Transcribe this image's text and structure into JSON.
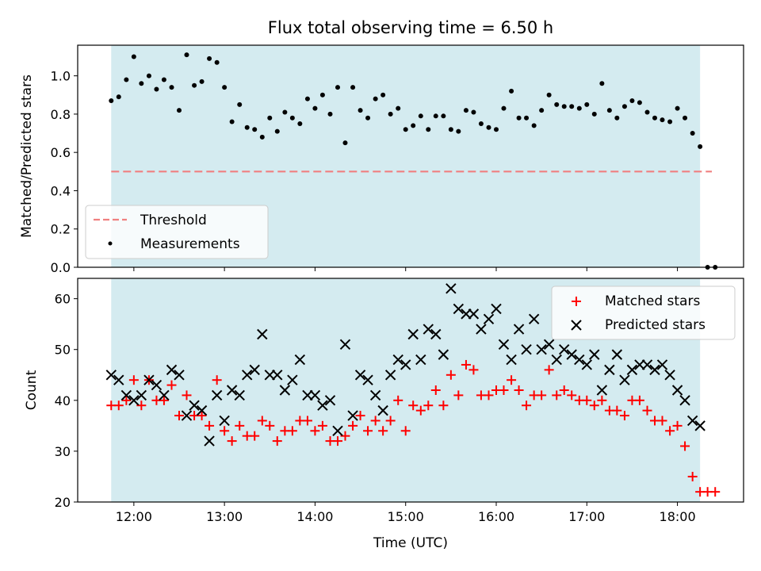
{
  "chart_data": [
    {
      "type": "scatter",
      "title": "Flux total observing time = 6.50 h",
      "ylabel": "Matched/Predicted stars",
      "xlabel": "",
      "xlim": [
        11.38,
        18.73
      ],
      "ylim": [
        0.0,
        1.16
      ],
      "yticks": [
        0.0,
        0.2,
        0.4,
        0.6,
        0.8,
        1.0
      ],
      "ytick_labels": [
        "0.0",
        "0.2",
        "0.4",
        "0.6",
        "0.8",
        "1.0"
      ],
      "xticks": [
        12,
        13,
        14,
        15,
        16,
        17,
        18
      ],
      "observing_window": [
        11.75,
        18.25
      ],
      "window_color": "#d4ebf0",
      "threshold": {
        "name": "Threshold",
        "value": 0.5,
        "x": [
          11.75,
          18.38
        ],
        "color": "#f08080",
        "style": "dashed"
      },
      "series": [
        {
          "name": "Measurements",
          "color": "#000000",
          "marker": "dot",
          "x": [
            11.75,
            11.833,
            11.917,
            12.0,
            12.083,
            12.167,
            12.25,
            12.333,
            12.417,
            12.5,
            12.583,
            12.667,
            12.75,
            12.833,
            12.917,
            13.0,
            13.083,
            13.167,
            13.25,
            13.333,
            13.417,
            13.5,
            13.583,
            13.667,
            13.75,
            13.833,
            13.917,
            14.0,
            14.083,
            14.167,
            14.25,
            14.333,
            14.417,
            14.5,
            14.583,
            14.667,
            14.75,
            14.833,
            14.917,
            15.0,
            15.083,
            15.167,
            15.25,
            15.333,
            15.417,
            15.5,
            15.583,
            15.667,
            15.75,
            15.833,
            15.917,
            16.0,
            16.083,
            16.167,
            16.25,
            16.333,
            16.417,
            16.5,
            16.583,
            16.667,
            16.75,
            16.833,
            16.917,
            17.0,
            17.083,
            17.167,
            17.25,
            17.333,
            17.417,
            17.5,
            17.583,
            17.667,
            17.75,
            17.833,
            17.917,
            18.0,
            18.083,
            18.167,
            18.25,
            18.333,
            18.417
          ],
          "y": [
            0.87,
            0.89,
            0.98,
            1.1,
            0.96,
            1.0,
            0.93,
            0.98,
            0.94,
            0.82,
            1.11,
            0.95,
            0.97,
            1.09,
            1.07,
            0.94,
            0.76,
            0.85,
            0.73,
            0.72,
            0.68,
            0.78,
            0.71,
            0.81,
            0.78,
            0.75,
            0.88,
            0.83,
            0.9,
            0.8,
            0.94,
            0.65,
            0.94,
            0.82,
            0.78,
            0.88,
            0.9,
            0.8,
            0.83,
            0.72,
            0.74,
            0.79,
            0.72,
            0.79,
            0.79,
            0.72,
            0.71,
            0.82,
            0.81,
            0.75,
            0.73,
            0.72,
            0.83,
            0.92,
            0.78,
            0.78,
            0.74,
            0.82,
            0.9,
            0.85,
            0.84,
            0.84,
            0.83,
            0.85,
            0.8,
            0.96,
            0.82,
            0.78,
            0.84,
            0.87,
            0.86,
            0.81,
            0.78,
            0.77,
            0.76,
            0.83,
            0.78,
            0.7,
            0.63,
            0.0,
            0.0
          ]
        }
      ],
      "legend": {
        "placement": "lower left",
        "entries": [
          "Threshold",
          "Measurements"
        ]
      }
    },
    {
      "type": "scatter",
      "title": "",
      "ylabel": "Count",
      "xlabel": "Time (UTC)",
      "xlim": [
        11.38,
        18.73
      ],
      "ylim": [
        20,
        64
      ],
      "yticks": [
        20,
        30,
        40,
        50,
        60
      ],
      "ytick_labels": [
        "20",
        "30",
        "40",
        "50",
        "60"
      ],
      "xticks": [
        12,
        13,
        14,
        15,
        16,
        17,
        18
      ],
      "xtick_labels": [
        "12:00",
        "13:00",
        "14:00",
        "15:00",
        "16:00",
        "17:00",
        "18:00"
      ],
      "observing_window": [
        11.75,
        18.25
      ],
      "window_color": "#d4ebf0",
      "series": [
        {
          "name": "Matched stars",
          "color": "#ff0000",
          "marker": "plus",
          "x": [
            11.75,
            11.833,
            11.917,
            12.0,
            12.083,
            12.167,
            12.25,
            12.333,
            12.417,
            12.5,
            12.583,
            12.667,
            12.75,
            12.833,
            12.917,
            13.0,
            13.083,
            13.167,
            13.25,
            13.333,
            13.417,
            13.5,
            13.583,
            13.667,
            13.75,
            13.833,
            13.917,
            14.0,
            14.083,
            14.167,
            14.25,
            14.333,
            14.417,
            14.5,
            14.583,
            14.667,
            14.75,
            14.833,
            14.917,
            15.0,
            15.083,
            15.167,
            15.25,
            15.333,
            15.417,
            15.5,
            15.583,
            15.667,
            15.75,
            15.833,
            15.917,
            16.0,
            16.083,
            16.167,
            16.25,
            16.333,
            16.417,
            16.5,
            16.583,
            16.667,
            16.75,
            16.833,
            16.917,
            17.0,
            17.083,
            17.167,
            17.25,
            17.333,
            17.417,
            17.5,
            17.583,
            17.667,
            17.75,
            17.833,
            17.917,
            18.0,
            18.083,
            18.167,
            18.25,
            18.333,
            18.417
          ],
          "y": [
            39,
            39,
            40,
            44,
            39,
            44,
            40,
            40,
            43,
            37,
            41,
            37,
            37,
            35,
            44,
            34,
            32,
            35,
            33,
            33,
            36,
            35,
            32,
            34,
            34,
            36,
            36,
            34,
            35,
            32,
            32,
            33,
            35,
            37,
            34,
            36,
            34,
            36,
            40,
            34,
            39,
            38,
            39,
            42,
            39,
            45,
            41,
            47,
            46,
            41,
            41,
            42,
            42,
            44,
            42,
            39,
            41,
            41,
            46,
            41,
            42,
            41,
            40,
            40,
            39,
            40,
            38,
            38,
            37,
            40,
            40,
            38,
            36,
            36,
            34,
            35,
            31,
            25,
            22,
            22,
            22
          ]
        },
        {
          "name": "Predicted stars",
          "color": "#000000",
          "marker": "cross",
          "x": [
            11.75,
            11.833,
            11.917,
            12.0,
            12.083,
            12.167,
            12.25,
            12.333,
            12.417,
            12.5,
            12.583,
            12.667,
            12.75,
            12.833,
            12.917,
            13.0,
            13.083,
            13.167,
            13.25,
            13.333,
            13.417,
            13.5,
            13.583,
            13.667,
            13.75,
            13.833,
            13.917,
            14.0,
            14.083,
            14.167,
            14.25,
            14.333,
            14.417,
            14.5,
            14.583,
            14.667,
            14.75,
            14.833,
            14.917,
            15.0,
            15.083,
            15.167,
            15.25,
            15.333,
            15.417,
            15.5,
            15.583,
            15.667,
            15.75,
            15.833,
            15.917,
            16.0,
            16.083,
            16.167,
            16.25,
            16.333,
            16.417,
            16.5,
            16.583,
            16.667,
            16.75,
            16.833,
            16.917,
            17.0,
            17.083,
            17.167,
            17.25,
            17.333,
            17.417,
            17.5,
            17.583,
            17.667,
            17.75,
            17.833,
            17.917,
            18.0,
            18.083,
            18.167,
            18.25
          ],
          "y": [
            45,
            44,
            41,
            40,
            41,
            44,
            43,
            41,
            46,
            45,
            37,
            39,
            38,
            32,
            41,
            36,
            42,
            41,
            45,
            46,
            53,
            45,
            45,
            42,
            44,
            48,
            41,
            41,
            39,
            40,
            34,
            51,
            37,
            45,
            44,
            41,
            38,
            45,
            48,
            47,
            53,
            48,
            54,
            53,
            49,
            62,
            58,
            57,
            57,
            54,
            56,
            58,
            51,
            48,
            54,
            50,
            56,
            50,
            51,
            48,
            50,
            49,
            48,
            47,
            49,
            42,
            46,
            49,
            44,
            46,
            47,
            47,
            46,
            47,
            45,
            42,
            40,
            36,
            35
          ]
        }
      ],
      "legend": {
        "placement": "upper right",
        "entries": [
          "Matched stars",
          "Predicted stars"
        ]
      }
    }
  ]
}
